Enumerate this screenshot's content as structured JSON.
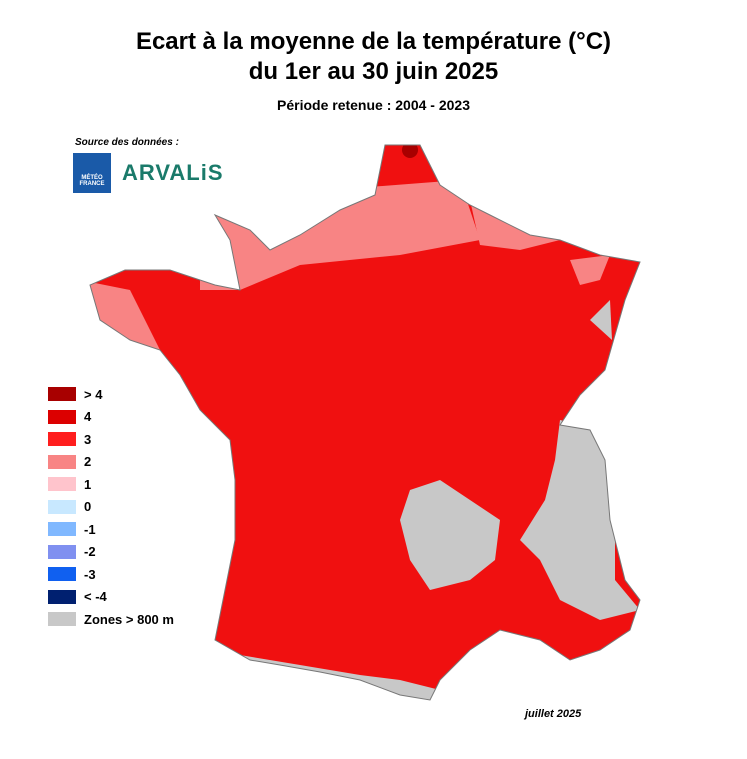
{
  "header": {
    "title_line1": "Ecart à la moyenne de la température (°C)",
    "title_line2": "du 1er au 30 juin 2025",
    "subtitle": "Période retenue : 2004 - 2023"
  },
  "source": {
    "label": "Source des données :",
    "logo1": "MÉTÉO FRANCE",
    "logo2": "ARVALiS"
  },
  "legend": {
    "items": [
      {
        "label": "> 4",
        "color": "#a80000"
      },
      {
        "label": "4",
        "color": "#dc0000"
      },
      {
        "label": "3",
        "color": "#ff1e1e"
      },
      {
        "label": "2",
        "color": "#f88484"
      },
      {
        "label": "1",
        "color": "#ffc4cc"
      },
      {
        "label": "0",
        "color": "#c8e8ff"
      },
      {
        "label": "-1",
        "color": "#80b8ff"
      },
      {
        "label": "-2",
        "color": "#8090f0"
      },
      {
        "label": "-3",
        "color": "#1060f0"
      },
      {
        "label": "< -4",
        "color": "#002070"
      },
      {
        "label": "Zones > 800 m",
        "color": "#c8c8c8"
      }
    ]
  },
  "footer": {
    "date": "juillet 2025"
  }
}
